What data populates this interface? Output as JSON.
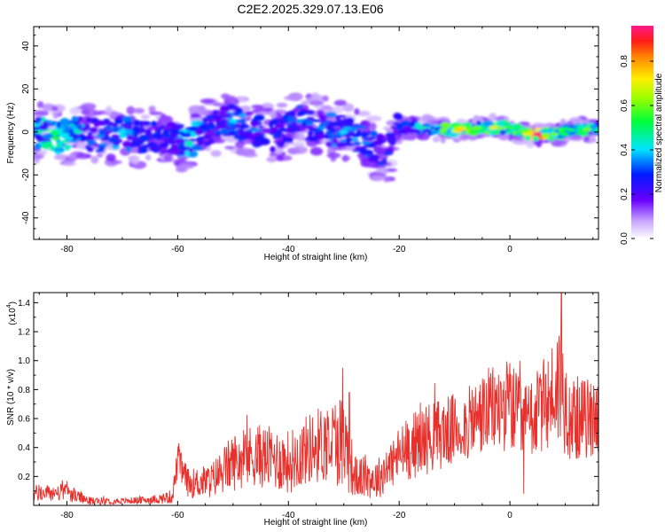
{
  "figure": {
    "title": "C2E2.2025.329.07.13.E06"
  },
  "chart_data": [
    {
      "type": "heatmap",
      "xlabel": "Height of straight line (km)",
      "ylabel": "Frequency (Hz)",
      "xlim": [
        -86,
        16
      ],
      "ylim": [
        -50,
        49
      ],
      "xticks": [
        -80,
        -60,
        -40,
        -20,
        0
      ],
      "yticks": [
        -40,
        -20,
        0,
        20,
        40
      ],
      "colorbar": {
        "label": "Normalized spectral amplitude",
        "range": [
          0,
          0.96
        ],
        "ticks": [
          0.0,
          0.2,
          0.4,
          0.6,
          0.8
        ],
        "colormap": "rainbow (white-purple-blue-cyan-green-yellow-red)"
      },
      "ridge": [
        {
          "x": -85,
          "freq": 0,
          "amp": 0.45
        },
        {
          "x": -82,
          "freq": -3,
          "amp": 0.55
        },
        {
          "x": -78,
          "freq": 0,
          "amp": 0.45
        },
        {
          "x": -74,
          "freq": -2,
          "amp": 0.35
        },
        {
          "x": -70,
          "freq": 0,
          "amp": 0.4
        },
        {
          "x": -66,
          "freq": -3,
          "amp": 0.3
        },
        {
          "x": -62,
          "freq": -2,
          "amp": 0.3
        },
        {
          "x": -58,
          "freq": -5,
          "amp": 0.45
        },
        {
          "x": -54,
          "freq": 2,
          "amp": 0.3
        },
        {
          "x": -50,
          "freq": 5,
          "amp": 0.4
        },
        {
          "x": -46,
          "freq": 1,
          "amp": 0.35
        },
        {
          "x": -42,
          "freq": -2,
          "amp": 0.3
        },
        {
          "x": -38,
          "freq": 5,
          "amp": 0.35
        },
        {
          "x": -34,
          "freq": 2,
          "amp": 0.35
        },
        {
          "x": -30,
          "freq": 0,
          "amp": 0.4
        },
        {
          "x": -26,
          "freq": -5,
          "amp": 0.35
        },
        {
          "x": -22,
          "freq": -10,
          "amp": 0.3
        },
        {
          "x": -20,
          "freq": 2,
          "amp": 0.3
        },
        {
          "x": -16,
          "freq": 2,
          "amp": 0.45
        },
        {
          "x": -12,
          "freq": 1,
          "amp": 0.6
        },
        {
          "x": -9,
          "freq": 1,
          "amp": 0.75
        },
        {
          "x": -6,
          "freq": 2,
          "amp": 0.6
        },
        {
          "x": -3,
          "freq": 2,
          "amp": 0.7
        },
        {
          "x": 0,
          "freq": 2,
          "amp": 0.55
        },
        {
          "x": 3,
          "freq": -1,
          "amp": 0.7
        },
        {
          "x": 5,
          "freq": -1,
          "amp": 0.95
        },
        {
          "x": 8,
          "freq": -1,
          "amp": 0.6
        },
        {
          "x": 11,
          "freq": 1,
          "amp": 0.5
        },
        {
          "x": 14,
          "freq": 1,
          "amp": 0.6
        },
        {
          "x": 16,
          "freq": 1,
          "amp": 0.5
        }
      ]
    },
    {
      "type": "line",
      "xlabel": "Height of straight line (km)",
      "ylabel": "SNR (10 * v/v)",
      "y_scale_label": "(x10",
      "y_scale_exponent": "4",
      "xlim": [
        -86,
        16
      ],
      "ylim": [
        0,
        1.47
      ],
      "xticks": [
        -80,
        -60,
        -40,
        -20,
        0
      ],
      "yticks": [
        0.2,
        0.4,
        0.6,
        0.8,
        1.0,
        1.2,
        1.4
      ],
      "ytick_labels": [
        "0.2",
        "0.4",
        "0.6",
        "0.8",
        "1.0",
        "1.2",
        "1.4"
      ],
      "series_color": "#e8302c",
      "envelope": [
        {
          "x": -86,
          "mean": 0.08,
          "spread": 0.06
        },
        {
          "x": -80,
          "mean": 0.09,
          "spread": 0.06
        },
        {
          "x": -76,
          "mean": 0.03,
          "spread": 0.03
        },
        {
          "x": -70,
          "mean": 0.03,
          "spread": 0.02
        },
        {
          "x": -64,
          "mean": 0.04,
          "spread": 0.03
        },
        {
          "x": -61,
          "mean": 0.06,
          "spread": 0.05
        },
        {
          "x": -60,
          "mean": 0.3,
          "spread": 0.12
        },
        {
          "x": -58,
          "mean": 0.15,
          "spread": 0.1
        },
        {
          "x": -54,
          "mean": 0.17,
          "spread": 0.12
        },
        {
          "x": -50,
          "mean": 0.3,
          "spread": 0.2
        },
        {
          "x": -46,
          "mean": 0.35,
          "spread": 0.22
        },
        {
          "x": -40,
          "mean": 0.3,
          "spread": 0.22
        },
        {
          "x": -36,
          "mean": 0.4,
          "spread": 0.25
        },
        {
          "x": -32,
          "mean": 0.45,
          "spread": 0.3
        },
        {
          "x": -30,
          "mean": 0.45,
          "spread": 0.35
        },
        {
          "x": -28,
          "mean": 0.2,
          "spread": 0.15
        },
        {
          "x": -24,
          "mean": 0.18,
          "spread": 0.14
        },
        {
          "x": -20,
          "mean": 0.35,
          "spread": 0.2
        },
        {
          "x": -16,
          "mean": 0.45,
          "spread": 0.25
        },
        {
          "x": -12,
          "mean": 0.5,
          "spread": 0.25
        },
        {
          "x": -8,
          "mean": 0.55,
          "spread": 0.25
        },
        {
          "x": -4,
          "mean": 0.65,
          "spread": 0.3
        },
        {
          "x": 0,
          "mean": 0.7,
          "spread": 0.32
        },
        {
          "x": 2,
          "mean": 0.55,
          "spread": 0.3
        },
        {
          "x": 4,
          "mean": 0.6,
          "spread": 0.28
        },
        {
          "x": 7,
          "mean": 0.72,
          "spread": 0.35
        },
        {
          "x": 9,
          "mean": 0.85,
          "spread": 0.45
        },
        {
          "x": 11,
          "mean": 0.6,
          "spread": 0.3
        },
        {
          "x": 14,
          "mean": 0.6,
          "spread": 0.28
        },
        {
          "x": 16,
          "mean": 0.62,
          "spread": 0.28
        }
      ],
      "peaks": [
        {
          "x": -59.8,
          "y": 0.43
        },
        {
          "x": -30.2,
          "y": 0.95
        },
        {
          "x": -29.0,
          "y": 0.78
        },
        {
          "x": 9.3,
          "y": 1.47
        },
        {
          "x": 1.8,
          "y": 1.0
        },
        {
          "x": 2.5,
          "y": 0.08
        }
      ]
    }
  ]
}
